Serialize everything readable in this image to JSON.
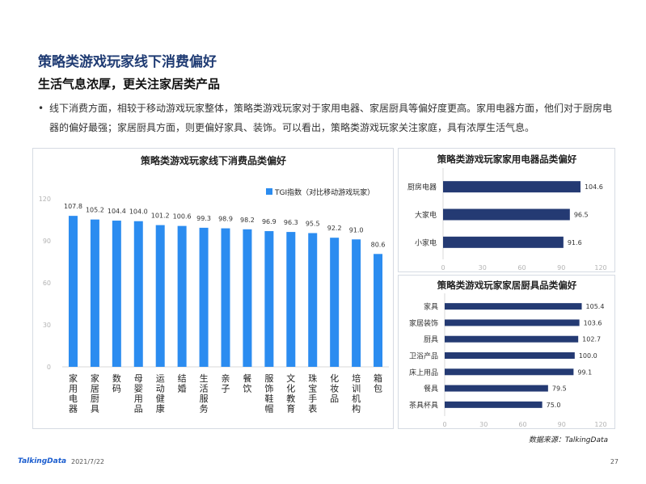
{
  "page": {
    "title": "策略类游戏玩家线下消费偏好",
    "subtitle": "生活气息浓厚，更关注家居类产品",
    "bullet_marker": "•",
    "bullet": "线下消费方面，相较于移动游戏玩家整体，策略类游戏玩家对于家用电器、家居厨具等偏好度更高。家用电器方面，他们对于厨房电器的偏好最强；家居厨具方面，则更偏好家具、装饰。可以看出，策略类游戏玩家关注家庭，具有浓厚生活气息。",
    "source": "数据来源：TalkingData",
    "logo": "TalkingData",
    "date": "2021/7/22",
    "page_number": "27"
  },
  "colors": {
    "main_bar": "#2b8cf0",
    "side_bar": "#243a73",
    "title": "#1f3b73",
    "axis_text": "#b3b3b3",
    "grid": "#d9d9d9"
  },
  "chart_data": [
    {
      "type": "bar",
      "title": "策略类游戏玩家线下消费品类偏好",
      "legend": "TGI指数（对比移动游戏玩家）",
      "categories": [
        "家用电器",
        "家居厨具",
        "数码",
        "母婴用品",
        "运动健康",
        "结婚",
        "生活服务",
        "亲子",
        "餐饮",
        "服饰鞋帽",
        "文化教育",
        "珠宝手表",
        "化妆品",
        "培训机构",
        "箱包"
      ],
      "values": [
        107.8,
        105.2,
        104.4,
        104.0,
        101.2,
        100.6,
        99.3,
        98.9,
        98.2,
        96.9,
        96.3,
        95.5,
        92.2,
        91.0,
        80.6
      ],
      "value_labels": [
        "107.8",
        "105.2",
        "104.4",
        "104.0",
        "101.2",
        "100.6",
        "99.3",
        "98.9",
        "98.2",
        "96.9",
        "96.3",
        "95.5",
        "92.2",
        "91.0",
        "80.6"
      ],
      "ylim": [
        0,
        120
      ],
      "yticks": [
        "0",
        "30",
        "60",
        "90",
        "120"
      ]
    },
    {
      "type": "bar",
      "orientation": "horizontal",
      "title": "策略类游戏玩家家用电器品类偏好",
      "categories": [
        "厨房电器",
        "大家电",
        "小家电"
      ],
      "values": [
        104.6,
        96.5,
        91.6
      ],
      "value_labels": [
        "104.6",
        "96.5",
        "91.6"
      ],
      "xlim": [
        0,
        120
      ],
      "xticks": [
        "0",
        "30",
        "60",
        "90",
        "120"
      ]
    },
    {
      "type": "bar",
      "orientation": "horizontal",
      "title": "策略类游戏玩家家居厨具品类偏好",
      "categories": [
        "家具",
        "家居装饰",
        "厨具",
        "卫浴产品",
        "床上用品",
        "餐具",
        "茶具杯具"
      ],
      "values": [
        105.4,
        103.6,
        102.7,
        100.0,
        99.1,
        79.5,
        75.0
      ],
      "value_labels": [
        "105.4",
        "103.6",
        "102.7",
        "100.0",
        "99.1",
        "79.5",
        "75.0"
      ],
      "xlim": [
        0,
        120
      ],
      "xticks": [
        "0",
        "30",
        "60",
        "90",
        "120"
      ]
    }
  ]
}
